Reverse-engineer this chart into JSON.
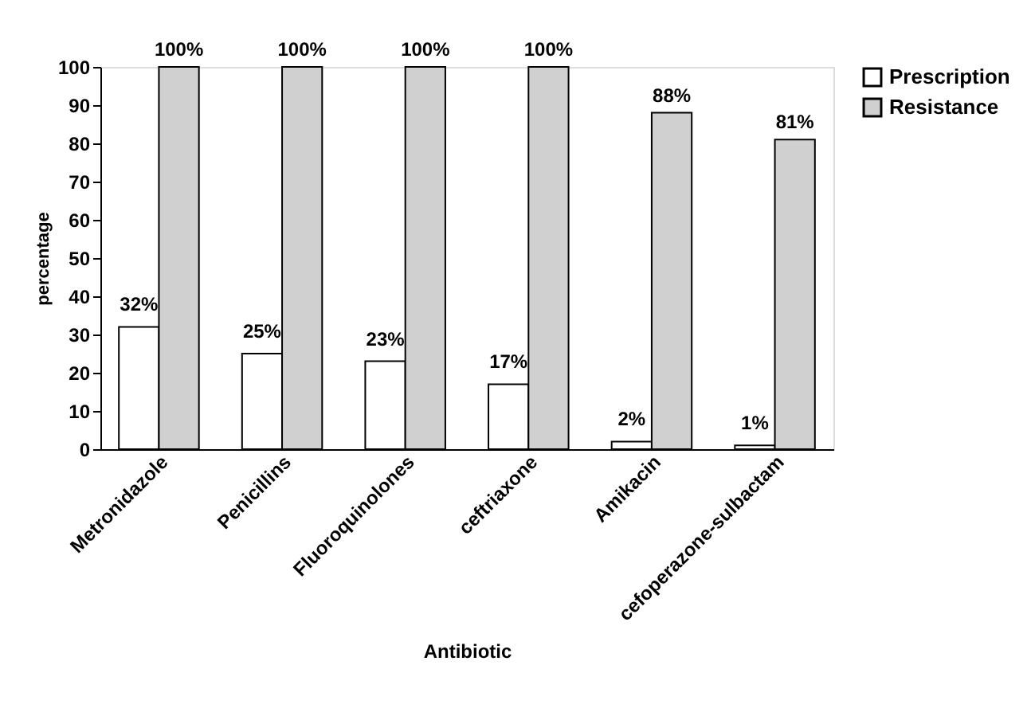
{
  "chart_data": {
    "type": "bar",
    "xlabel": "Antibiotic",
    "ylabel": "percentage",
    "categories": [
      "Metronidazole",
      "Penicillins",
      "Fluoroquinolones",
      "ceftriaxone",
      "Amikacin",
      "cefoperazone-sulbactam"
    ],
    "series": [
      {
        "name": "Prescription",
        "color": "#ffffff",
        "values": [
          32,
          25,
          23,
          17,
          2,
          1
        ],
        "value_labels": [
          "32%",
          "25%",
          "23%",
          "17%",
          "2%",
          "1%"
        ]
      },
      {
        "name": "Resistance",
        "color": "#d0d0d0",
        "values": [
          100,
          100,
          100,
          100,
          88,
          81
        ],
        "value_labels": [
          "100%",
          "100%",
          "100%",
          "100%",
          "88%",
          "81%"
        ]
      }
    ],
    "ylim": [
      0,
      100
    ],
    "yticks": [
      0,
      10,
      20,
      30,
      40,
      50,
      60,
      70,
      80,
      90,
      100
    ],
    "grid": false,
    "legend": "right"
  }
}
